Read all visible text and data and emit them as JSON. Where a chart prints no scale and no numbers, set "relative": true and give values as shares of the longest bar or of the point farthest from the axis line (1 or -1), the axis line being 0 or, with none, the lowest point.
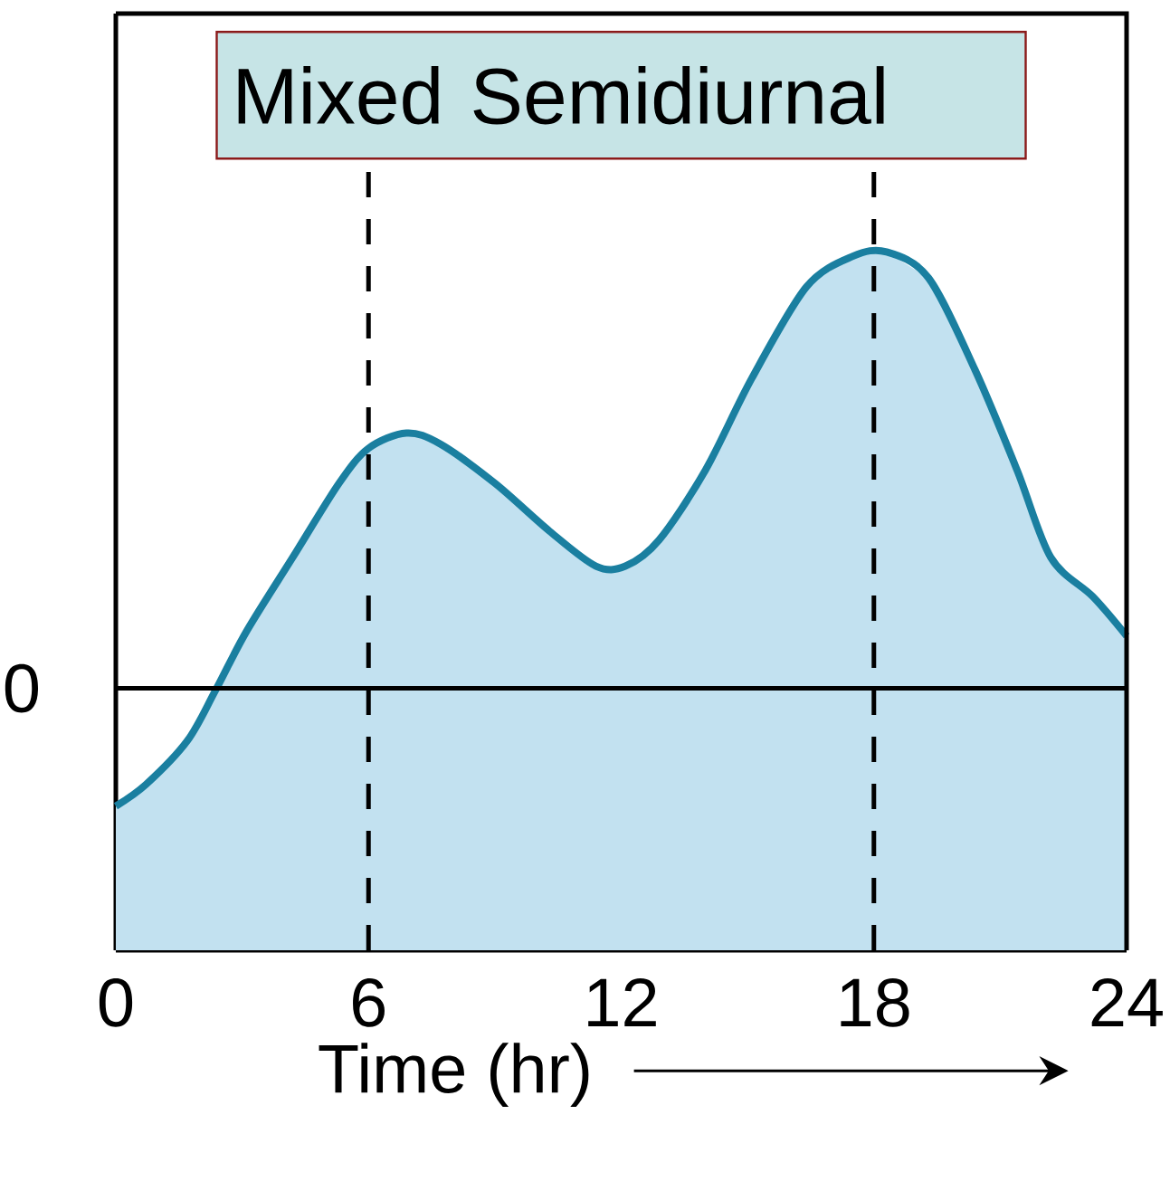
{
  "chart_data": {
    "type": "area",
    "title": "Mixed Semidiurnal",
    "xlabel": "Time (hr)",
    "relative": true,
    "x": [
      0,
      0.72,
      1.7,
      2.36,
      3.1,
      4.2,
      5.3,
      6.0,
      6.9,
      7.7,
      9.0,
      10.3,
      11.4,
      12.1,
      12.9,
      14.0,
      15.1,
      16.4,
      17.5,
      18.3,
      19.3,
      20.4,
      21.4,
      22.2,
      23.2,
      24
    ],
    "series": [
      {
        "color": "#1a7fa0",
        "values": [
          -0.27,
          -0.22,
          -0.12,
          -0.006,
          0.13,
          0.3,
          0.47,
          0.55,
          0.585,
          0.56,
          0.47,
          0.36,
          0.28,
          0.28,
          0.34,
          0.5,
          0.71,
          0.92,
          0.99,
          1.0,
          0.94,
          0.73,
          0.5,
          0.3,
          0.21,
          0.12
        ]
      }
    ],
    "xlim": [
      0,
      24
    ],
    "xticks": [
      0,
      6,
      12,
      18,
      24
    ],
    "ref_lines": [
      {
        "axis": "y",
        "value": 0,
        "label": "0",
        "color": "#000000",
        "line_style": "solid"
      },
      {
        "axis": "x",
        "value": 6,
        "color": "#000000",
        "line_style": "dashed"
      },
      {
        "axis": "x",
        "value": 18,
        "color": "#000000",
        "line_style": "dashed"
      }
    ]
  }
}
